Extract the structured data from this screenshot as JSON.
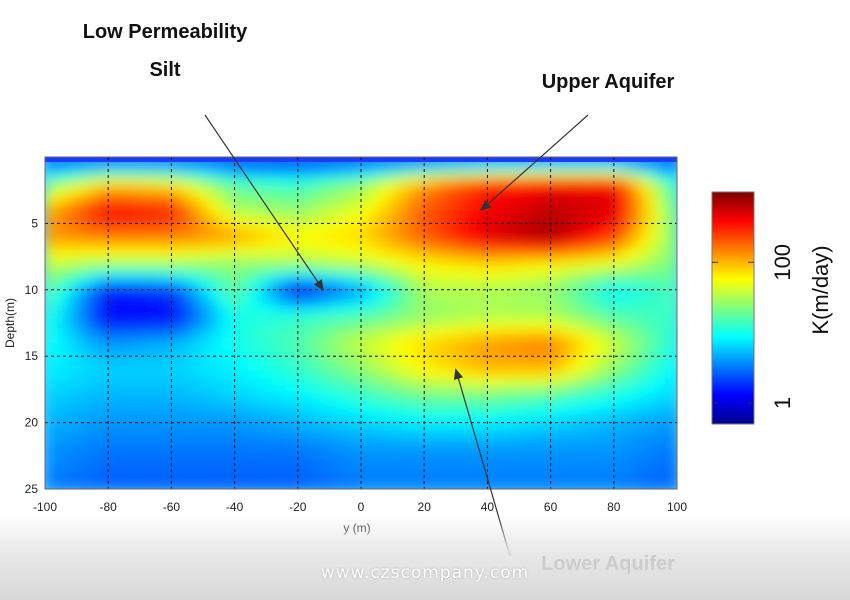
{
  "chart_data": {
    "type": "heatmap",
    "x": [
      -100,
      -80,
      -60,
      -40,
      -20,
      0,
      20,
      40,
      60,
      80,
      100
    ],
    "y": [
      0,
      2,
      4,
      6,
      8,
      10,
      12,
      14,
      16,
      18,
      20,
      22,
      25
    ],
    "xlim": [
      -100,
      100
    ],
    "ylim": [
      25,
      0
    ],
    "xlabel": "y (m)",
    "ylabel": "Depth(m)",
    "xticks": [
      "-100",
      "-80",
      "-60",
      "-40",
      "-20",
      "0",
      "20",
      "40",
      "60",
      "80",
      "100"
    ],
    "yticks": [
      "5",
      "10",
      "15",
      "20",
      "25"
    ],
    "ytick_values": [
      5,
      10,
      15,
      20,
      25
    ],
    "grid": true,
    "values_log10K": [
      [
        0.0,
        0.0,
        0.0,
        0.0,
        0.0,
        0.0,
        0.0,
        0.0,
        0.0,
        0.0,
        0.0
      ],
      [
        1.3,
        1.9,
        1.8,
        1.2,
        1.1,
        1.4,
        2.1,
        2.5,
        2.6,
        2.6,
        1.0
      ],
      [
        2.0,
        2.6,
        2.5,
        1.5,
        1.4,
        1.7,
        2.3,
        2.6,
        2.8,
        2.7,
        1.2
      ],
      [
        2.1,
        2.2,
        2.2,
        2.1,
        1.8,
        1.9,
        2.3,
        2.7,
        2.9,
        2.4,
        1.3
      ],
      [
        1.6,
        1.5,
        1.5,
        1.4,
        1.5,
        1.6,
        1.8,
        1.9,
        1.8,
        1.7,
        1.3
      ],
      [
        1.3,
        0.2,
        0.3,
        1.3,
        0.1,
        0.6,
        1.5,
        1.5,
        1.4,
        0.9,
        1.2
      ],
      [
        1.1,
        0.1,
        0.1,
        1.0,
        1.1,
        1.2,
        1.4,
        1.5,
        1.5,
        1.2,
        1.1
      ],
      [
        1.0,
        0.6,
        0.7,
        1.0,
        1.2,
        1.6,
        1.9,
        2.1,
        2.2,
        1.6,
        1.0
      ],
      [
        0.9,
        0.8,
        0.8,
        0.9,
        1.1,
        1.4,
        1.8,
        2.0,
        2.0,
        1.4,
        0.9
      ],
      [
        0.8,
        0.7,
        0.7,
        0.8,
        0.9,
        1.1,
        1.3,
        1.3,
        1.2,
        1.0,
        0.8
      ],
      [
        0.7,
        0.6,
        0.6,
        0.6,
        0.7,
        0.8,
        0.9,
        0.9,
        0.8,
        0.7,
        0.6
      ],
      [
        0.6,
        0.5,
        0.5,
        0.5,
        0.5,
        0.6,
        0.6,
        0.6,
        0.6,
        0.6,
        0.5
      ],
      [
        0.5,
        0.4,
        0.4,
        0.4,
        0.4,
        0.5,
        0.5,
        0.5,
        0.5,
        0.5,
        0.4
      ]
    ],
    "colorbar": {
      "label": "K(m/day)",
      "ticks": [
        "1",
        "100"
      ],
      "tick_values_log10": [
        0,
        2
      ],
      "range_log10": [
        -0.3,
        3.0
      ],
      "colormap": "jet"
    },
    "annotations": [
      {
        "text": "Low Permeability\nSilt",
        "points_to": {
          "x": -12,
          "y": 10
        }
      },
      {
        "text": "Upper Aquifer",
        "points_to": {
          "x": 38,
          "y": 4
        }
      },
      {
        "text": "Lower Aquifer",
        "points_to": {
          "x": 30,
          "y": 16
        }
      }
    ]
  },
  "watermark": "www.czscompany.com"
}
